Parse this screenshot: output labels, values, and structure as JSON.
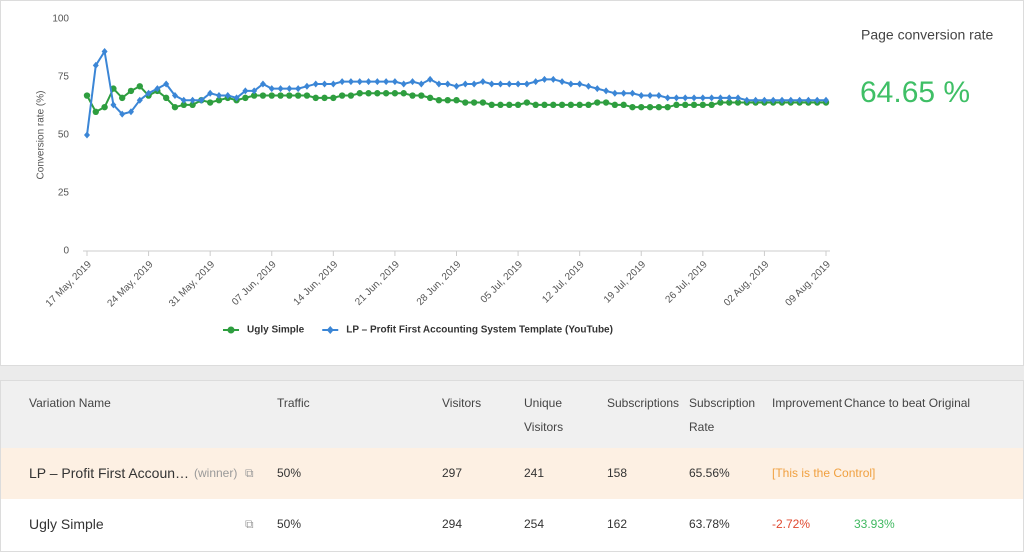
{
  "chart_data": {
    "type": "line",
    "y_axis_label": "Conversion rate (%)",
    "categories": [
      "17 May, 2019",
      null,
      null,
      null,
      null,
      null,
      null,
      "24 May, 2019",
      null,
      null,
      null,
      null,
      null,
      null,
      "31 May, 2019",
      null,
      null,
      null,
      null,
      null,
      null,
      "07 Jun, 2019",
      null,
      null,
      null,
      null,
      null,
      null,
      "14 Jun, 2019",
      null,
      null,
      null,
      null,
      null,
      null,
      "21 Jun, 2019",
      null,
      null,
      null,
      null,
      null,
      null,
      "28 Jun, 2019",
      null,
      null,
      null,
      null,
      null,
      null,
      "05 Jul, 2019",
      null,
      null,
      null,
      null,
      null,
      null,
      "12 Jul, 2019",
      null,
      null,
      null,
      null,
      null,
      null,
      "19 Jul, 2019",
      null,
      null,
      null,
      null,
      null,
      null,
      "26 Jul, 2019",
      null,
      null,
      null,
      null,
      null,
      null,
      "02 Aug, 2019",
      null,
      null,
      null,
      null,
      null,
      null,
      "09 Aug, 2019"
    ],
    "series": [
      {
        "name": "Ugly Simple",
        "color": "#2e9e3f",
        "marker": "circle",
        "values": [
          67,
          60,
          62,
          70,
          66,
          69,
          71,
          67,
          69,
          66,
          62,
          63,
          63,
          65,
          64,
          65,
          66,
          65,
          66,
          67,
          67,
          67,
          67,
          67,
          67,
          67,
          66,
          66,
          66,
          67,
          67,
          68,
          68,
          68,
          68,
          68,
          68,
          67,
          67,
          66,
          65,
          65,
          65,
          64,
          64,
          64,
          63,
          63,
          63,
          63,
          64,
          63,
          63,
          63,
          63,
          63,
          63,
          63,
          64,
          64,
          63,
          63,
          62,
          62,
          62,
          62,
          62,
          63,
          63,
          63,
          63,
          63,
          64,
          64,
          64,
          64,
          64,
          64,
          64,
          64,
          64,
          64,
          64,
          64,
          64
        ]
      },
      {
        "name": "LP – Profit First Accounting System Template (YouTube)",
        "color": "#3b86d6",
        "marker": "diamond",
        "values": [
          50,
          80,
          86,
          63,
          59,
          60,
          65,
          68,
          70,
          72,
          67,
          65,
          65,
          65,
          68,
          67,
          67,
          66,
          69,
          69,
          72,
          70,
          70,
          70,
          70,
          71,
          72,
          72,
          72,
          73,
          73,
          73,
          73,
          73,
          73,
          73,
          72,
          73,
          72,
          74,
          72,
          72,
          71,
          72,
          72,
          73,
          72,
          72,
          72,
          72,
          72,
          73,
          74,
          74,
          73,
          72,
          72,
          71,
          70,
          69,
          68,
          68,
          68,
          67,
          67,
          67,
          66,
          66,
          66,
          66,
          66,
          66,
          66,
          66,
          66,
          65,
          65,
          65,
          65,
          65,
          65,
          65,
          65,
          65,
          65
        ]
      }
    ],
    "ylim": [
      0,
      100
    ],
    "yticks": [
      0,
      25,
      50,
      75,
      100
    ],
    "grid": false,
    "legend": "bottom"
  },
  "summary": {
    "label": "Page conversion rate",
    "value": "64.65 %"
  },
  "table": {
    "headers": [
      "Variation Name",
      "Traffic",
      "Visitors",
      "Unique Visitors",
      "Subscriptions",
      "Subscription Rate",
      "Improvement",
      "Chance to beat Original"
    ],
    "rows": [
      {
        "name": "LP – Profit First Accoun…",
        "badge": "(winner)",
        "traffic": "50%",
        "visitors": "297",
        "unique_visitors": "241",
        "subscriptions": "158",
        "rate": "65.56%",
        "improvement": "[This is the Control]"
      },
      {
        "name": "Ugly Simple",
        "traffic": "50%",
        "visitors": "294",
        "unique_visitors": "254",
        "subscriptions": "162",
        "rate": "63.78%",
        "improvement": "-2.72%",
        "chance": "33.93%"
      }
    ]
  }
}
